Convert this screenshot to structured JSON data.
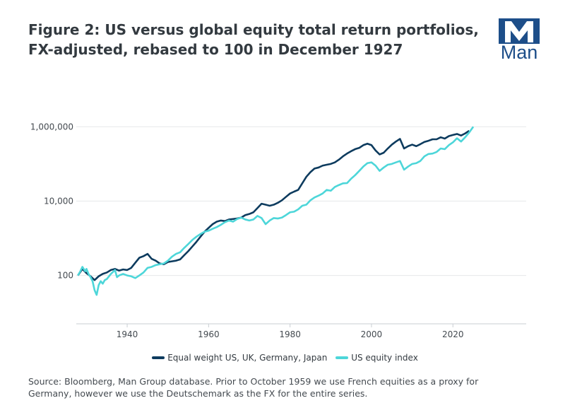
{
  "header": {
    "title": "Figure 2: US versus global equity total return portfolios, FX-adjusted, rebased to 100 in December 1927"
  },
  "logo": {
    "text": "Man",
    "color": "#1d4e89"
  },
  "chart_data": {
    "type": "line",
    "title": "Figure 2: US versus global equity total return portfolios, FX-adjusted, rebased to 100 in December 1927",
    "xlabel": "",
    "ylabel": "",
    "yscale": "log",
    "xlim": [
      1927.5,
      2038
    ],
    "ylim": [
      5,
      1500000
    ],
    "x_ticks": [
      1940,
      1960,
      1980,
      2000,
      2020
    ],
    "x_tick_labels": [
      "1940",
      "1960",
      "1980",
      "2000",
      "2020"
    ],
    "y_ticks": [
      100,
      10000,
      1000000
    ],
    "y_tick_labels": [
      "100",
      "10,000",
      "1,000,000"
    ],
    "grid": true,
    "legend_position": "bottom",
    "series": [
      {
        "name": "Equal weight US, UK, Germany, Japan",
        "color": "#0d3b5e",
        "points": [
          [
            1927.9,
            100
          ],
          [
            1929,
            150
          ],
          [
            1930,
            115
          ],
          [
            1931,
            95
          ],
          [
            1932,
            75
          ],
          [
            1933,
            95
          ],
          [
            1934,
            110
          ],
          [
            1935,
            120
          ],
          [
            1936,
            140
          ],
          [
            1937,
            150
          ],
          [
            1938,
            135
          ],
          [
            1939,
            145
          ],
          [
            1940,
            140
          ],
          [
            1941,
            160
          ],
          [
            1942,
            220
          ],
          [
            1943,
            300
          ],
          [
            1944,
            330
          ],
          [
            1945,
            380
          ],
          [
            1946,
            280
          ],
          [
            1947,
            250
          ],
          [
            1948,
            210
          ],
          [
            1949,
            200
          ],
          [
            1950,
            230
          ],
          [
            1951,
            240
          ],
          [
            1952,
            250
          ],
          [
            1953,
            270
          ],
          [
            1954,
            350
          ],
          [
            1955,
            450
          ],
          [
            1956,
            600
          ],
          [
            1957,
            800
          ],
          [
            1958,
            1100
          ],
          [
            1959,
            1500
          ],
          [
            1960,
            1900
          ],
          [
            1961,
            2400
          ],
          [
            1962,
            2800
          ],
          [
            1963,
            3000
          ],
          [
            1964,
            2900
          ],
          [
            1965,
            3200
          ],
          [
            1966,
            3300
          ],
          [
            1967,
            3400
          ],
          [
            1968,
            3600
          ],
          [
            1969,
            4200
          ],
          [
            1970,
            4500
          ],
          [
            1971,
            5000
          ],
          [
            1972,
            6500
          ],
          [
            1973,
            8500
          ],
          [
            1974,
            8000
          ],
          [
            1975,
            7500
          ],
          [
            1976,
            8000
          ],
          [
            1977,
            9000
          ],
          [
            1978,
            10500
          ],
          [
            1979,
            13000
          ],
          [
            1980,
            16000
          ],
          [
            1981,
            18000
          ],
          [
            1982,
            20000
          ],
          [
            1983,
            30000
          ],
          [
            1984,
            45000
          ],
          [
            1985,
            60000
          ],
          [
            1986,
            75000
          ],
          [
            1987,
            80000
          ],
          [
            1988,
            90000
          ],
          [
            1989,
            95000
          ],
          [
            1990,
            100000
          ],
          [
            1991,
            110000
          ],
          [
            1992,
            130000
          ],
          [
            1993,
            160000
          ],
          [
            1994,
            190000
          ],
          [
            1995,
            220000
          ],
          [
            1996,
            250000
          ],
          [
            1997,
            270000
          ],
          [
            1998,
            320000
          ],
          [
            1999,
            350000
          ],
          [
            2000,
            320000
          ],
          [
            2001,
            230000
          ],
          [
            2002,
            180000
          ],
          [
            2003,
            200000
          ],
          [
            2004,
            260000
          ],
          [
            2005,
            330000
          ],
          [
            2006,
            400000
          ],
          [
            2007,
            470000
          ],
          [
            2008,
            260000
          ],
          [
            2009,
            300000
          ],
          [
            2010,
            330000
          ],
          [
            2011,
            300000
          ],
          [
            2012,
            340000
          ],
          [
            2013,
            390000
          ],
          [
            2014,
            420000
          ],
          [
            2015,
            460000
          ],
          [
            2016,
            460000
          ],
          [
            2017,
            520000
          ],
          [
            2018,
            480000
          ],
          [
            2019,
            560000
          ],
          [
            2020,
            600000
          ],
          [
            2021,
            640000
          ],
          [
            2022,
            580000
          ],
          [
            2023,
            660000
          ],
          [
            2024,
            780000
          ]
        ]
      },
      {
        "name": "US equity index",
        "color": "#4dd6d9",
        "points": [
          [
            1927.9,
            100
          ],
          [
            1928.5,
            130
          ],
          [
            1929,
            170
          ],
          [
            1929.7,
            130
          ],
          [
            1930,
            150
          ],
          [
            1930.5,
            110
          ],
          [
            1931,
            90
          ],
          [
            1931.5,
            70
          ],
          [
            1932,
            40
          ],
          [
            1932.5,
            30
          ],
          [
            1933,
            55
          ],
          [
            1933.5,
            70
          ],
          [
            1934,
            60
          ],
          [
            1934.5,
            75
          ],
          [
            1935,
            80
          ],
          [
            1936,
            110
          ],
          [
            1937,
            140
          ],
          [
            1937.5,
            90
          ],
          [
            1938,
            100
          ],
          [
            1939,
            110
          ],
          [
            1940,
            100
          ],
          [
            1941,
            95
          ],
          [
            1942,
            85
          ],
          [
            1943,
            100
          ],
          [
            1944,
            120
          ],
          [
            1945,
            160
          ],
          [
            1946,
            170
          ],
          [
            1947,
            190
          ],
          [
            1948,
            200
          ],
          [
            1949,
            210
          ],
          [
            1950,
            250
          ],
          [
            1951,
            320
          ],
          [
            1952,
            380
          ],
          [
            1953,
            420
          ],
          [
            1954,
            550
          ],
          [
            1955,
            700
          ],
          [
            1956,
            900
          ],
          [
            1957,
            1100
          ],
          [
            1958,
            1300
          ],
          [
            1959,
            1500
          ],
          [
            1960,
            1600
          ],
          [
            1961,
            1800
          ],
          [
            1962,
            2000
          ],
          [
            1963,
            2300
          ],
          [
            1964,
            2700
          ],
          [
            1965,
            3000
          ],
          [
            1966,
            2800
          ],
          [
            1967,
            3300
          ],
          [
            1968,
            3600
          ],
          [
            1969,
            3200
          ],
          [
            1970,
            3000
          ],
          [
            1971,
            3200
          ],
          [
            1972,
            4000
          ],
          [
            1973,
            3500
          ],
          [
            1974,
            2400
          ],
          [
            1975,
            3000
          ],
          [
            1976,
            3500
          ],
          [
            1977,
            3400
          ],
          [
            1978,
            3600
          ],
          [
            1979,
            4200
          ],
          [
            1980,
            5000
          ],
          [
            1981,
            5200
          ],
          [
            1982,
            6000
          ],
          [
            1983,
            7500
          ],
          [
            1984,
            8000
          ],
          [
            1985,
            10500
          ],
          [
            1986,
            12500
          ],
          [
            1987,
            14000
          ],
          [
            1988,
            16000
          ],
          [
            1989,
            20000
          ],
          [
            1990,
            19000
          ],
          [
            1991,
            24000
          ],
          [
            1992,
            27000
          ],
          [
            1993,
            30000
          ],
          [
            1994,
            30500
          ],
          [
            1995,
            40000
          ],
          [
            1996,
            50000
          ],
          [
            1997,
            65000
          ],
          [
            1998,
            85000
          ],
          [
            1999,
            105000
          ],
          [
            2000,
            110000
          ],
          [
            2001,
            90000
          ],
          [
            2002,
            65000
          ],
          [
            2003,
            80000
          ],
          [
            2004,
            95000
          ],
          [
            2005,
            100000
          ],
          [
            2006,
            110000
          ],
          [
            2007,
            120000
          ],
          [
            2008,
            70000
          ],
          [
            2009,
            85000
          ],
          [
            2010,
            100000
          ],
          [
            2011,
            105000
          ],
          [
            2012,
            120000
          ],
          [
            2013,
            160000
          ],
          [
            2014,
            185000
          ],
          [
            2015,
            190000
          ],
          [
            2016,
            210000
          ],
          [
            2017,
            260000
          ],
          [
            2018,
            250000
          ],
          [
            2019,
            320000
          ],
          [
            2020,
            380000
          ],
          [
            2021,
            490000
          ],
          [
            2022,
            400000
          ],
          [
            2023,
            520000
          ],
          [
            2024,
            700000
          ],
          [
            2025,
            1000000
          ]
        ]
      }
    ]
  },
  "legend": {
    "items": [
      {
        "label": "Equal weight US, UK, Germany, Japan",
        "color": "#0d3b5e"
      },
      {
        "label": "US equity index",
        "color": "#4dd6d9"
      }
    ]
  },
  "footer": {
    "source": "Source: Bloomberg, Man Group database. Prior to October 1959 we use French equities as a proxy for Germany, however we use the Deutschemark as the FX for the entire series."
  }
}
